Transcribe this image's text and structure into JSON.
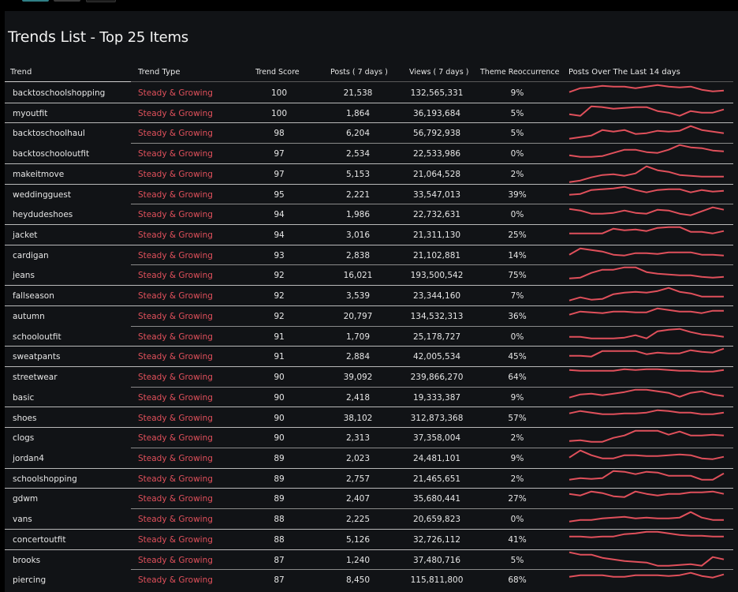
{
  "title": {
    "main": "Trends List",
    "sub": "- Top 25 Items"
  },
  "colors": {
    "accent": "#e0505b",
    "panel": "#111316",
    "topbar_buttons": [
      "#2f7f86",
      "#3a3a3a",
      "#1c1c1c"
    ]
  },
  "columns": {
    "trend": "Trend",
    "type": "Trend Type",
    "score": "Trend Score",
    "posts": "Posts ( 7 days )",
    "views": "Views ( 7 days )",
    "reoccurrence": "Theme Reoccurrence",
    "spark": "Posts Over The Last 14 days"
  },
  "rows": [
    {
      "trend": "backtoschoolshopping",
      "type": "Steady & Growing",
      "score": "100",
      "posts": "21,538",
      "views": "132,565,331",
      "reoccurrence": "9%",
      "spark": [
        14,
        19,
        20,
        22,
        21,
        21,
        19,
        21,
        23,
        21,
        20,
        21,
        17,
        15,
        16
      ]
    },
    {
      "trend": "myoutfit",
      "type": "Steady & Growing",
      "score": "100",
      "posts": "1,864",
      "views": "36,193,684",
      "reoccurrence": "5%",
      "spark": [
        12,
        10,
        22,
        21,
        19,
        20,
        21,
        21,
        16,
        14,
        10,
        16,
        14,
        14,
        18
      ]
    },
    {
      "trend": "backtoschoolhaul",
      "type": "Steady & Growing",
      "score": "98",
      "posts": "6,204",
      "views": "56,792,938",
      "reoccurrence": "5%",
      "spark": [
        6,
        8,
        10,
        17,
        15,
        17,
        12,
        13,
        16,
        15,
        16,
        22,
        17,
        15,
        13
      ]
    },
    {
      "trend": "backtoschooloutfit",
      "type": "Steady & Growing",
      "score": "97",
      "posts": "2,534",
      "views": "22,533,986",
      "reoccurrence": "0%",
      "spark": [
        11,
        9,
        9,
        10,
        14,
        18,
        18,
        15,
        14,
        18,
        24,
        21,
        20,
        17,
        16
      ]
    },
    {
      "trend": "makeitmove",
      "type": "Steady & Growing",
      "score": "97",
      "posts": "5,153",
      "views": "21,064,528",
      "reoccurrence": "2%",
      "spark": [
        3,
        5,
        9,
        12,
        13,
        11,
        14,
        23,
        18,
        16,
        12,
        11,
        10,
        10,
        10
      ]
    },
    {
      "trend": "weddingguest",
      "type": "Steady & Growing",
      "score": "95",
      "posts": "2,221",
      "views": "33,547,013",
      "reoccurrence": "39%",
      "spark": [
        13,
        14,
        19,
        20,
        21,
        23,
        19,
        16,
        19,
        20,
        20,
        16,
        19,
        17,
        18
      ]
    },
    {
      "trend": "heydudeshoes",
      "type": "Steady & Growing",
      "score": "94",
      "posts": "1,986",
      "views": "22,732,631",
      "reoccurrence": "0%",
      "spark": [
        20,
        18,
        14,
        14,
        15,
        18,
        15,
        14,
        19,
        18,
        14,
        12,
        17,
        22,
        19
      ]
    },
    {
      "trend": "jacket",
      "type": "Steady & Growing",
      "score": "94",
      "posts": "3,016",
      "views": "21,311,130",
      "reoccurrence": "25%",
      "spark": [
        15,
        15,
        15,
        15,
        21,
        19,
        20,
        18,
        22,
        23,
        23,
        17,
        17,
        15,
        18
      ]
    },
    {
      "trend": "cardigan",
      "type": "Steady & Growing",
      "score": "93",
      "posts": "2,838",
      "views": "21,102,881",
      "reoccurrence": "14%",
      "spark": [
        14,
        22,
        20,
        18,
        14,
        13,
        16,
        16,
        15,
        17,
        17,
        17,
        14,
        14,
        13
      ]
    },
    {
      "trend": "jeans",
      "type": "Steady & Growing",
      "score": "92",
      "posts": "16,021",
      "views": "193,500,542",
      "reoccurrence": "75%",
      "spark": [
        9,
        10,
        16,
        20,
        20,
        23,
        23,
        17,
        15,
        14,
        13,
        13,
        11,
        10,
        11
      ]
    },
    {
      "trend": "fallseason",
      "type": "Steady & Growing",
      "score": "92",
      "posts": "3,539",
      "views": "23,344,160",
      "reoccurrence": "7%",
      "spark": [
        7,
        11,
        8,
        9,
        15,
        17,
        18,
        17,
        19,
        23,
        18,
        16,
        12,
        12,
        12
      ]
    },
    {
      "trend": "autumn",
      "type": "Steady & Growing",
      "score": "92",
      "posts": "20,797",
      "views": "134,532,313",
      "reoccurrence": "36%",
      "spark": [
        15,
        19,
        18,
        17,
        19,
        19,
        18,
        18,
        23,
        21,
        19,
        19,
        17,
        20,
        20
      ]
    },
    {
      "trend": "schooloutfit",
      "type": "Steady & Growing",
      "score": "91",
      "posts": "1,709",
      "views": "25,178,727",
      "reoccurrence": "0%",
      "spark": [
        13,
        13,
        11,
        11,
        11,
        12,
        15,
        11,
        20,
        22,
        23,
        19,
        16,
        15,
        13
      ]
    },
    {
      "trend": "sweatpants",
      "type": "Steady & Growing",
      "score": "91",
      "posts": "2,884",
      "views": "42,005,534",
      "reoccurrence": "45%",
      "spark": [
        14,
        14,
        13,
        20,
        20,
        20,
        20,
        16,
        18,
        17,
        17,
        21,
        19,
        18,
        23
      ]
    },
    {
      "trend": "streetwear",
      "type": "Steady & Growing",
      "score": "90",
      "posts": "39,092",
      "views": "239,866,270",
      "reoccurrence": "64%",
      "spark": [
        22,
        21,
        21,
        21,
        21,
        23,
        22,
        23,
        23,
        22,
        21,
        21,
        20,
        20,
        22
      ]
    },
    {
      "trend": "basic",
      "type": "Steady & Growing",
      "score": "90",
      "posts": "2,418",
      "views": "19,333,387",
      "reoccurrence": "9%",
      "spark": [
        13,
        17,
        18,
        16,
        18,
        20,
        23,
        23,
        21,
        19,
        14,
        19,
        21,
        17,
        15
      ]
    },
    {
      "trend": "shoes",
      "type": "Steady & Growing",
      "score": "90",
      "posts": "38,102",
      "views": "312,873,368",
      "reoccurrence": "57%",
      "spark": [
        19,
        22,
        20,
        18,
        18,
        19,
        19,
        20,
        23,
        22,
        20,
        20,
        18,
        18,
        20
      ]
    },
    {
      "trend": "clogs",
      "type": "Steady & Growing",
      "score": "90",
      "posts": "2,313",
      "views": "37,358,004",
      "reoccurrence": "2%",
      "spark": [
        9,
        10,
        8,
        8,
        13,
        16,
        22,
        22,
        22,
        17,
        21,
        16,
        16,
        17,
        16
      ]
    },
    {
      "trend": "jordan4",
      "type": "Steady & Growing",
      "score": "89",
      "posts": "2,023",
      "views": "24,481,101",
      "reoccurrence": "9%",
      "spark": [
        14,
        23,
        17,
        13,
        13,
        17,
        17,
        16,
        16,
        17,
        18,
        17,
        13,
        12,
        15
      ]
    },
    {
      "trend": "schoolshopping",
      "type": "Steady & Growing",
      "score": "89",
      "posts": "2,757",
      "views": "21,465,651",
      "reoccurrence": "2%",
      "spark": [
        12,
        14,
        13,
        14,
        23,
        22,
        19,
        22,
        21,
        17,
        17,
        17,
        12,
        12,
        20
      ]
    },
    {
      "trend": "gdwm",
      "type": "Steady & Growing",
      "score": "89",
      "posts": "2,407",
      "views": "35,680,441",
      "reoccurrence": "27%",
      "spark": [
        19,
        17,
        22,
        20,
        16,
        15,
        22,
        19,
        17,
        19,
        19,
        21,
        21,
        22,
        19
      ]
    },
    {
      "trend": "vans",
      "type": "Steady & Growing",
      "score": "88",
      "posts": "2,225",
      "views": "20,659,823",
      "reoccurrence": "0%",
      "spark": [
        10,
        12,
        12,
        14,
        15,
        16,
        14,
        15,
        14,
        14,
        15,
        22,
        15,
        12,
        12
      ]
    },
    {
      "trend": "concertoutfit",
      "type": "Steady & Growing",
      "score": "88",
      "posts": "5,126",
      "views": "32,726,112",
      "reoccurrence": "41%",
      "spark": [
        17,
        17,
        16,
        17,
        17,
        20,
        21,
        23,
        23,
        21,
        19,
        18,
        18,
        17,
        17
      ]
    },
    {
      "trend": "brooks",
      "type": "Steady & Growing",
      "score": "87",
      "posts": "1,240",
      "views": "37,480,716",
      "reoccurrence": "5%",
      "spark": [
        23,
        20,
        20,
        16,
        14,
        12,
        11,
        10,
        6,
        6,
        7,
        8,
        6,
        17,
        14
      ]
    },
    {
      "trend": "piercing",
      "type": "Steady & Growing",
      "score": "87",
      "posts": "8,450",
      "views": "115,811,800",
      "reoccurrence": "68%",
      "spark": [
        17,
        19,
        19,
        19,
        17,
        17,
        19,
        19,
        19,
        18,
        19,
        22,
        18,
        16,
        20
      ]
    }
  ]
}
